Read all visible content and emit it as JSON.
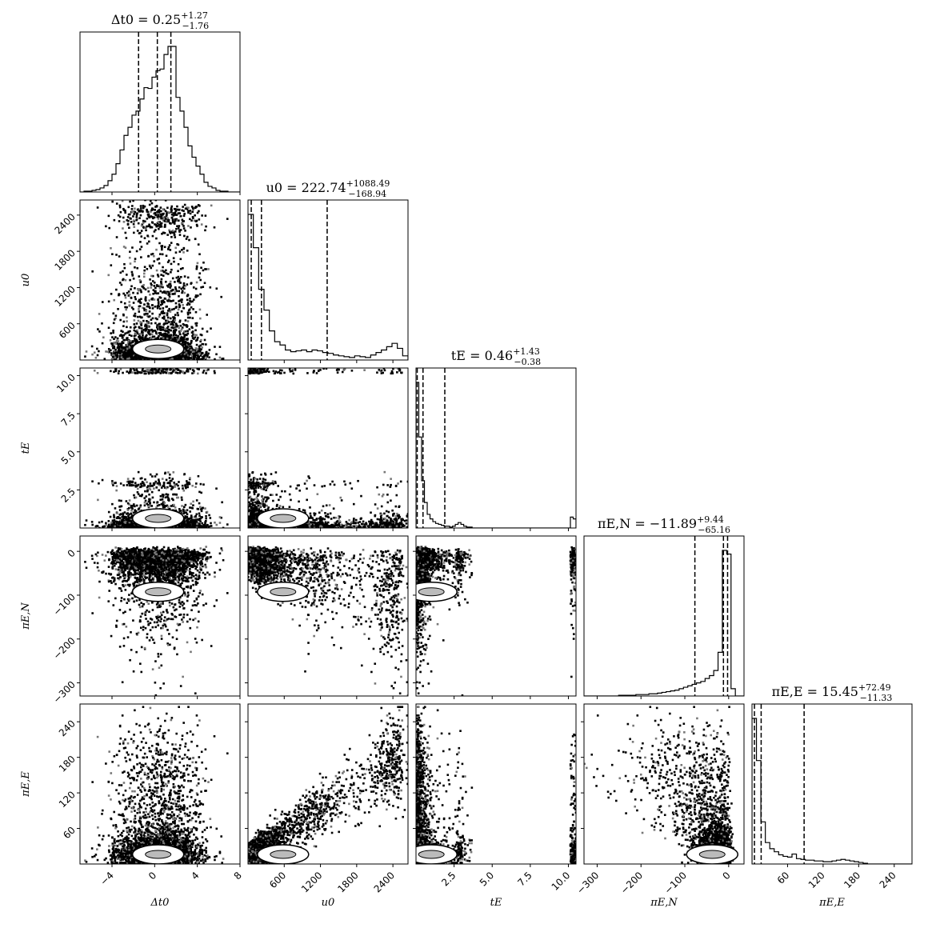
{
  "chart_data": {
    "type": "corner",
    "parameters": [
      {
        "key": "dt0",
        "label": "Δt0",
        "range": [
          -7,
          8
        ],
        "ticks": [
          -4,
          0,
          4,
          8
        ],
        "tick_labels": [
          "−4",
          "0",
          "4",
          "8"
        ],
        "title": {
          "name": "Δt0",
          "value": "0.25",
          "plus": "+1.27",
          "minus": "−1.76"
        },
        "quantiles": [
          -1.51,
          0.25,
          1.52
        ],
        "histogram": {
          "bin_edges_range": [
            -7,
            8
          ],
          "counts": [
            0,
            1,
            1,
            2,
            3,
            5,
            8,
            14,
            22,
            35,
            52,
            70,
            80,
            95,
            100,
            115,
            129,
            128,
            142,
            150,
            152,
            170,
            180,
            180,
            117,
            100,
            80,
            57,
            43,
            32,
            22,
            12,
            7,
            5,
            2,
            1,
            1,
            0,
            0,
            0
          ]
        }
      },
      {
        "key": "u0",
        "label": "u0",
        "range": [
          0,
          2650
        ],
        "ticks": [
          600,
          1200,
          1800,
          2400
        ],
        "tick_labels": [
          "600",
          "1200",
          "1800",
          "2400"
        ],
        "title": {
          "name": "u0",
          "value": "222.74",
          "plus": "+1088.49",
          "minus": "−168.94"
        },
        "quantiles": [
          53.8,
          222.74,
          1311.2
        ],
        "histogram": {
          "bin_edges_range": [
            0,
            2650
          ],
          "counts": [
            175,
            135,
            85,
            60,
            35,
            22,
            18,
            12,
            10,
            11,
            12,
            10,
            12,
            11,
            9,
            8,
            6,
            5,
            4,
            3,
            5,
            4,
            3,
            6,
            9,
            12,
            16,
            20,
            14,
            5
          ]
        }
      },
      {
        "key": "tE",
        "label": "tE",
        "range": [
          0,
          10.5
        ],
        "ticks": [
          2.5,
          5.0,
          7.5,
          10.0
        ],
        "tick_labels": [
          "2.5",
          "5.0",
          "7.5",
          "10.0"
        ],
        "title": {
          "name": "tE",
          "value": "0.46",
          "plus": "+1.43",
          "minus": "−0.38"
        },
        "quantiles": [
          0.08,
          0.46,
          1.89
        ],
        "histogram": {
          "bin_edges_range": [
            0,
            10.5
          ],
          "counts": [
            160,
            100,
            52,
            28,
            15,
            10,
            7,
            5,
            4,
            3,
            2,
            2,
            1,
            2,
            4,
            6,
            4,
            2,
            1,
            1,
            0,
            0,
            0,
            0,
            0,
            0,
            0,
            0,
            0,
            0,
            0,
            0,
            0,
            0,
            0,
            0,
            0,
            0,
            0,
            0,
            0,
            0,
            0,
            0,
            0,
            0,
            0,
            0,
            0,
            0,
            0,
            0,
            0,
            0,
            0,
            12,
            10
          ]
        }
      },
      {
        "key": "piEN",
        "label": "πE,N",
        "range": [
          -330,
          35
        ],
        "ticks": [
          -300,
          -200,
          -100,
          0
        ],
        "tick_labels": [
          "−300",
          "−200",
          "−100",
          "0"
        ],
        "title": {
          "name": "πE,N",
          "value": "−11.89",
          "plus": "+9.44",
          "minus": "−65.16"
        },
        "quantiles": [
          -77.05,
          -11.89,
          -2.45
        ],
        "histogram": {
          "bin_edges_range": [
            -330,
            35
          ],
          "counts": [
            0,
            0,
            0,
            0,
            0,
            0,
            0,
            0,
            1,
            1,
            1,
            1,
            2,
            2,
            2,
            3,
            3,
            4,
            5,
            6,
            7,
            8,
            10,
            12,
            14,
            16,
            18,
            20,
            24,
            28,
            35,
            60,
            200,
            195,
            10,
            0,
            0
          ]
        }
      },
      {
        "key": "piEE",
        "label": "πE,E",
        "range": [
          0,
          270
        ],
        "ticks": [
          60,
          120,
          180,
          240
        ],
        "tick_labels": [
          "60",
          "120",
          "180",
          "240"
        ],
        "title": {
          "name": "πE,E",
          "value": "15.45",
          "plus": "+72.49",
          "minus": "−11.33"
        },
        "quantiles": [
          4.12,
          15.45,
          87.94
        ],
        "histogram": {
          "bin_edges_range": [
            0,
            270
          ],
          "counts": [
            190,
            135,
            55,
            28,
            20,
            16,
            12,
            10,
            9,
            13,
            7,
            6,
            5,
            5,
            4,
            4,
            3,
            3,
            4,
            5,
            6,
            5,
            4,
            3,
            2,
            1,
            0,
            0,
            0,
            0,
            0,
            0,
            0,
            0,
            0,
            0
          ]
        }
      }
    ],
    "histogram_style": "step",
    "quantile_line_style": "dashed",
    "contour_levels": [
      0.393,
      0.865,
      0.989
    ]
  }
}
